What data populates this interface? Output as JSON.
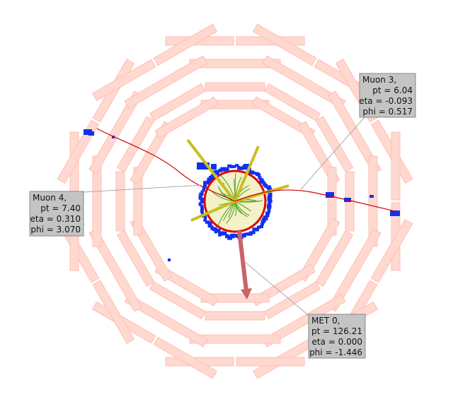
{
  "labels": [
    {
      "title": "Muon 3,",
      "lines": [
        "pt = 6.04",
        "eta = -0.093",
        "phi = 0.517"
      ]
    },
    {
      "title": "Muon 4,",
      "lines": [
        "pt = 7.40",
        "eta = 0.310",
        "phi = 3.070"
      ]
    },
    {
      "title": "MET 0,",
      "lines": [
        "pt = 126.21",
        "eta = 0.000",
        "phi = -1.446"
      ]
    }
  ]
}
